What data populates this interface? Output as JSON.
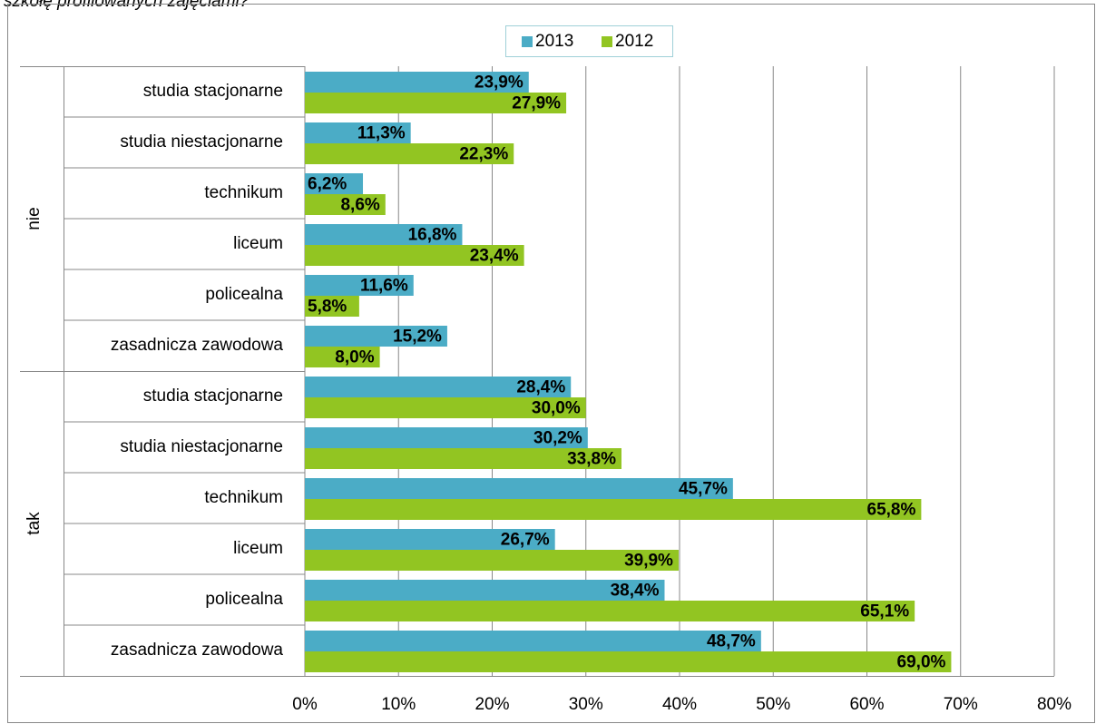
{
  "chart_data": {
    "type": "bar",
    "orientation": "horizontal",
    "title": "szkołę profilowanych zajęciami?",
    "category_groups": [
      {
        "name": "nie",
        "categories": [
          "studia stacjonarne",
          "studia niestacjonarne",
          "technikum",
          "liceum",
          "policealna",
          "zasadnicza zawodowa"
        ]
      },
      {
        "name": "tak",
        "categories": [
          "studia stacjonarne",
          "studia niestacjonarne",
          "technikum",
          "liceum",
          "policealna",
          "zasadnicza zawodowa"
        ]
      }
    ],
    "series": [
      {
        "name": "2013",
        "color": "#4bacc6",
        "values": [
          23.9,
          11.3,
          6.2,
          16.8,
          11.6,
          15.2,
          28.4,
          30.2,
          45.7,
          26.7,
          38.4,
          48.7
        ],
        "value_labels": [
          "23,9%",
          "11,3%",
          "6,2%",
          "16,8%",
          "11,6%",
          "15,2%",
          "28,4%",
          "30,2%",
          "45,7%",
          "26,7%",
          "38,4%",
          "48,7%"
        ]
      },
      {
        "name": "2012",
        "color": "#92c522",
        "values": [
          27.9,
          22.3,
          8.6,
          23.4,
          5.8,
          8.0,
          30.0,
          33.8,
          65.8,
          39.9,
          65.1,
          69.0
        ],
        "value_labels": [
          "27,9%",
          "22,3%",
          "8,6%",
          "23,4%",
          "5,8%",
          "8,0%",
          "30,0%",
          "33,8%",
          "65,8%",
          "39,9%",
          "65,1%",
          "69,0%"
        ]
      }
    ],
    "xlim": [
      0,
      80
    ],
    "xticks": [
      {
        "value": 0,
        "label": "0%"
      },
      {
        "value": 10,
        "label": "10%"
      },
      {
        "value": 20,
        "label": "20%"
      },
      {
        "value": 30,
        "label": "30%"
      },
      {
        "value": 40,
        "label": "40%"
      },
      {
        "value": 50,
        "label": "50%"
      },
      {
        "value": 60,
        "label": "60%"
      },
      {
        "value": 70,
        "label": "70%"
      },
      {
        "value": 80,
        "label": "80%"
      }
    ],
    "grid": true,
    "legend": "top"
  }
}
